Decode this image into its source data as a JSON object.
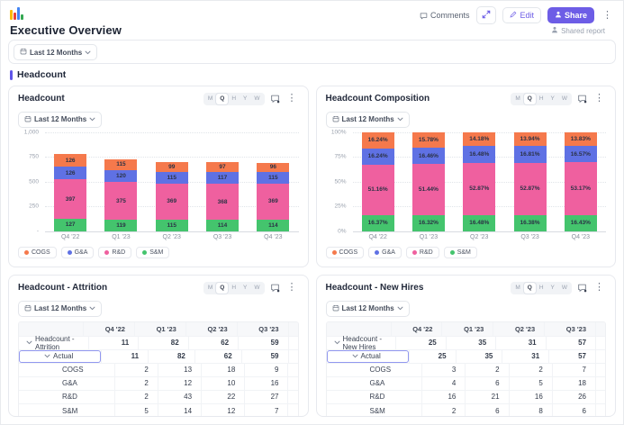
{
  "header": {
    "title": "Executive Overview",
    "comments_label": "Comments",
    "edit_label": "Edit",
    "share_label": "Share",
    "shared_report_label": "Shared report"
  },
  "filter": {
    "label": "Last 12 Months"
  },
  "section": {
    "title": "Headcount"
  },
  "granularity": {
    "options": [
      "M",
      "Q",
      "H",
      "Y",
      "W"
    ],
    "active": "Q"
  },
  "legend": [
    {
      "label": "COGS",
      "color": "#F5794C"
    },
    {
      "label": "G&A",
      "color": "#5F71E4"
    },
    {
      "label": "R&D",
      "color": "#EF609F"
    },
    {
      "label": "S&M",
      "color": "#44C46D"
    }
  ],
  "colors": {
    "accent": "#6D5DE6",
    "section_bar": "#5F54E8",
    "highlight_border": "#9298EF"
  },
  "chart_data": [
    {
      "type": "bar",
      "stacked": true,
      "title": "Headcount",
      "categories": [
        "Q4 '22",
        "Q1 '23",
        "Q2 '23",
        "Q3 '23",
        "Q4 '23"
      ],
      "series": [
        {
          "name": "S&M",
          "color": "#44C46D",
          "values": [
            127,
            119,
            115,
            114,
            114
          ]
        },
        {
          "name": "R&D",
          "color": "#EF609F",
          "values": [
            397,
            375,
            369,
            368,
            369
          ]
        },
        {
          "name": "G&A",
          "color": "#5F71E4",
          "values": [
            126,
            120,
            115,
            117,
            115
          ]
        },
        {
          "name": "COGS",
          "color": "#F5794C",
          "values": [
            126,
            115,
            99,
            97,
            96
          ]
        }
      ],
      "ylim": [
        0,
        1000
      ],
      "yticks": [
        "1,000",
        "750",
        "500",
        "250",
        "-"
      ],
      "grid": true,
      "legend_position": "bottom"
    },
    {
      "type": "bar",
      "stacked": true,
      "percent": true,
      "title": "Headcount Composition",
      "categories": [
        "Q4 '22",
        "Q1 '23",
        "Q2 '23",
        "Q3 '23",
        "Q4 '23"
      ],
      "series": [
        {
          "name": "S&M",
          "color": "#44C46D",
          "values": [
            16.37,
            16.32,
            16.48,
            16.38,
            16.43
          ]
        },
        {
          "name": "R&D",
          "color": "#EF609F",
          "values": [
            51.16,
            51.44,
            52.87,
            52.87,
            53.17
          ]
        },
        {
          "name": "G&A",
          "color": "#5F71E4",
          "values": [
            16.24,
            16.46,
            16.48,
            16.81,
            16.57
          ]
        },
        {
          "name": "COGS",
          "color": "#F5794C",
          "values": [
            16.24,
            15.78,
            14.18,
            13.94,
            13.83
          ]
        }
      ],
      "ylim": [
        0,
        100
      ],
      "yticks": [
        "100%",
        "75%",
        "50%",
        "25%",
        "0%"
      ],
      "grid": true,
      "legend_position": "bottom"
    },
    {
      "type": "table",
      "title": "Headcount - Attrition",
      "columns": [
        "Q4 '22",
        "Q1 '23",
        "Q2 '23",
        "Q3 '23"
      ],
      "rows": [
        {
          "label": "Headcount - Attrition",
          "level": 0,
          "expandable": true,
          "bold": true,
          "values": [
            11,
            82,
            62,
            59
          ]
        },
        {
          "label": "Actual",
          "level": 1,
          "expandable": true,
          "bold": true,
          "highlighted": true,
          "values": [
            11,
            82,
            62,
            59
          ]
        },
        {
          "label": "COGS",
          "level": 2,
          "values": [
            2,
            13,
            18,
            9
          ]
        },
        {
          "label": "G&A",
          "level": 2,
          "values": [
            2,
            12,
            10,
            16
          ]
        },
        {
          "label": "R&D",
          "level": 2,
          "values": [
            2,
            43,
            22,
            27
          ]
        },
        {
          "label": "S&M",
          "level": 2,
          "values": [
            5,
            14,
            12,
            7
          ]
        }
      ]
    },
    {
      "type": "table",
      "title": "Headcount - New Hires",
      "columns": [
        "Q4 '22",
        "Q1 '23",
        "Q2 '23",
        "Q3 '23"
      ],
      "rows": [
        {
          "label": "Headcount - New Hires",
          "level": 0,
          "expandable": true,
          "bold": true,
          "values": [
            25,
            35,
            31,
            57
          ]
        },
        {
          "label": "Actual",
          "level": 1,
          "expandable": true,
          "bold": true,
          "highlighted": true,
          "values": [
            25,
            35,
            31,
            57
          ]
        },
        {
          "label": "COGS",
          "level": 2,
          "values": [
            3,
            2,
            2,
            7
          ]
        },
        {
          "label": "G&A",
          "level": 2,
          "values": [
            4,
            6,
            5,
            18
          ]
        },
        {
          "label": "R&D",
          "level": 2,
          "values": [
            16,
            21,
            16,
            26
          ]
        },
        {
          "label": "S&M",
          "level": 2,
          "values": [
            2,
            6,
            8,
            6
          ]
        }
      ]
    }
  ]
}
